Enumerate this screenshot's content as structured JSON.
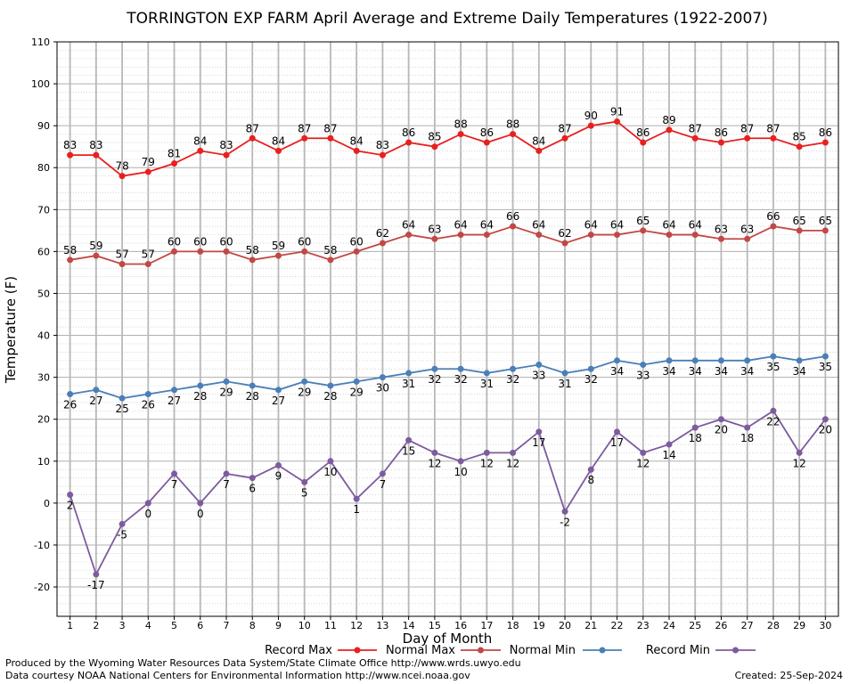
{
  "chart_data": {
    "type": "line",
    "title": "TORRINGTON EXP FARM April Average and Extreme Daily Temperatures (1922-2007)",
    "xlabel": "Day of Month",
    "ylabel": "Temperature (F)",
    "xlim": [
      0.5,
      30.5
    ],
    "ylim": [
      -27,
      110
    ],
    "yticks": [
      -20,
      -10,
      0,
      10,
      20,
      30,
      40,
      50,
      60,
      70,
      80,
      90,
      100,
      110
    ],
    "x": [
      1,
      2,
      3,
      4,
      5,
      6,
      7,
      8,
      9,
      10,
      11,
      12,
      13,
      14,
      15,
      16,
      17,
      18,
      19,
      20,
      21,
      22,
      23,
      24,
      25,
      26,
      27,
      28,
      29,
      30
    ],
    "grid": true,
    "legend_position": "bottom",
    "series": [
      {
        "name": "Record Max",
        "color": "#e8201f",
        "label_pos": "above",
        "values": [
          83,
          83,
          78,
          79,
          81,
          84,
          83,
          87,
          84,
          87,
          87,
          84,
          83,
          86,
          85,
          88,
          86,
          88,
          84,
          87,
          90,
          91,
          86,
          89,
          87,
          86,
          87,
          87,
          85,
          86
        ]
      },
      {
        "name": "Normal Max",
        "color": "#c14846",
        "label_pos": "above",
        "values": [
          58,
          59,
          57,
          57,
          60,
          60,
          60,
          58,
          59,
          60,
          58,
          60,
          62,
          64,
          63,
          64,
          64,
          66,
          64,
          62,
          64,
          64,
          65,
          64,
          64,
          63,
          63,
          66,
          65,
          65
        ]
      },
      {
        "name": "Normal Min",
        "color": "#4a7fb7",
        "label_pos": "below",
        "values": [
          26,
          27,
          25,
          26,
          27,
          28,
          29,
          28,
          27,
          29,
          28,
          29,
          30,
          31,
          32,
          32,
          31,
          32,
          33,
          31,
          32,
          34,
          33,
          34,
          34,
          34,
          34,
          35,
          34,
          35
        ]
      },
      {
        "name": "Record Min",
        "color": "#7d5b9e",
        "label_pos": "below",
        "values": [
          2,
          -17,
          -5,
          0,
          7,
          0,
          7,
          6,
          9,
          5,
          10,
          1,
          7,
          15,
          12,
          10,
          12,
          12,
          17,
          -2,
          8,
          17,
          12,
          14,
          18,
          20,
          18,
          22,
          12,
          20
        ]
      }
    ]
  },
  "footer": {
    "produced_by": "Produced by the Wyoming Water Resources Data System/State Climate Office http://www.wrds.uwyo.edu",
    "data_courtesy": "Data courtesy NOAA National Centers for Environmental Information http://www.ncei.noaa.gov",
    "created": "Created:  25-Sep-2024"
  }
}
